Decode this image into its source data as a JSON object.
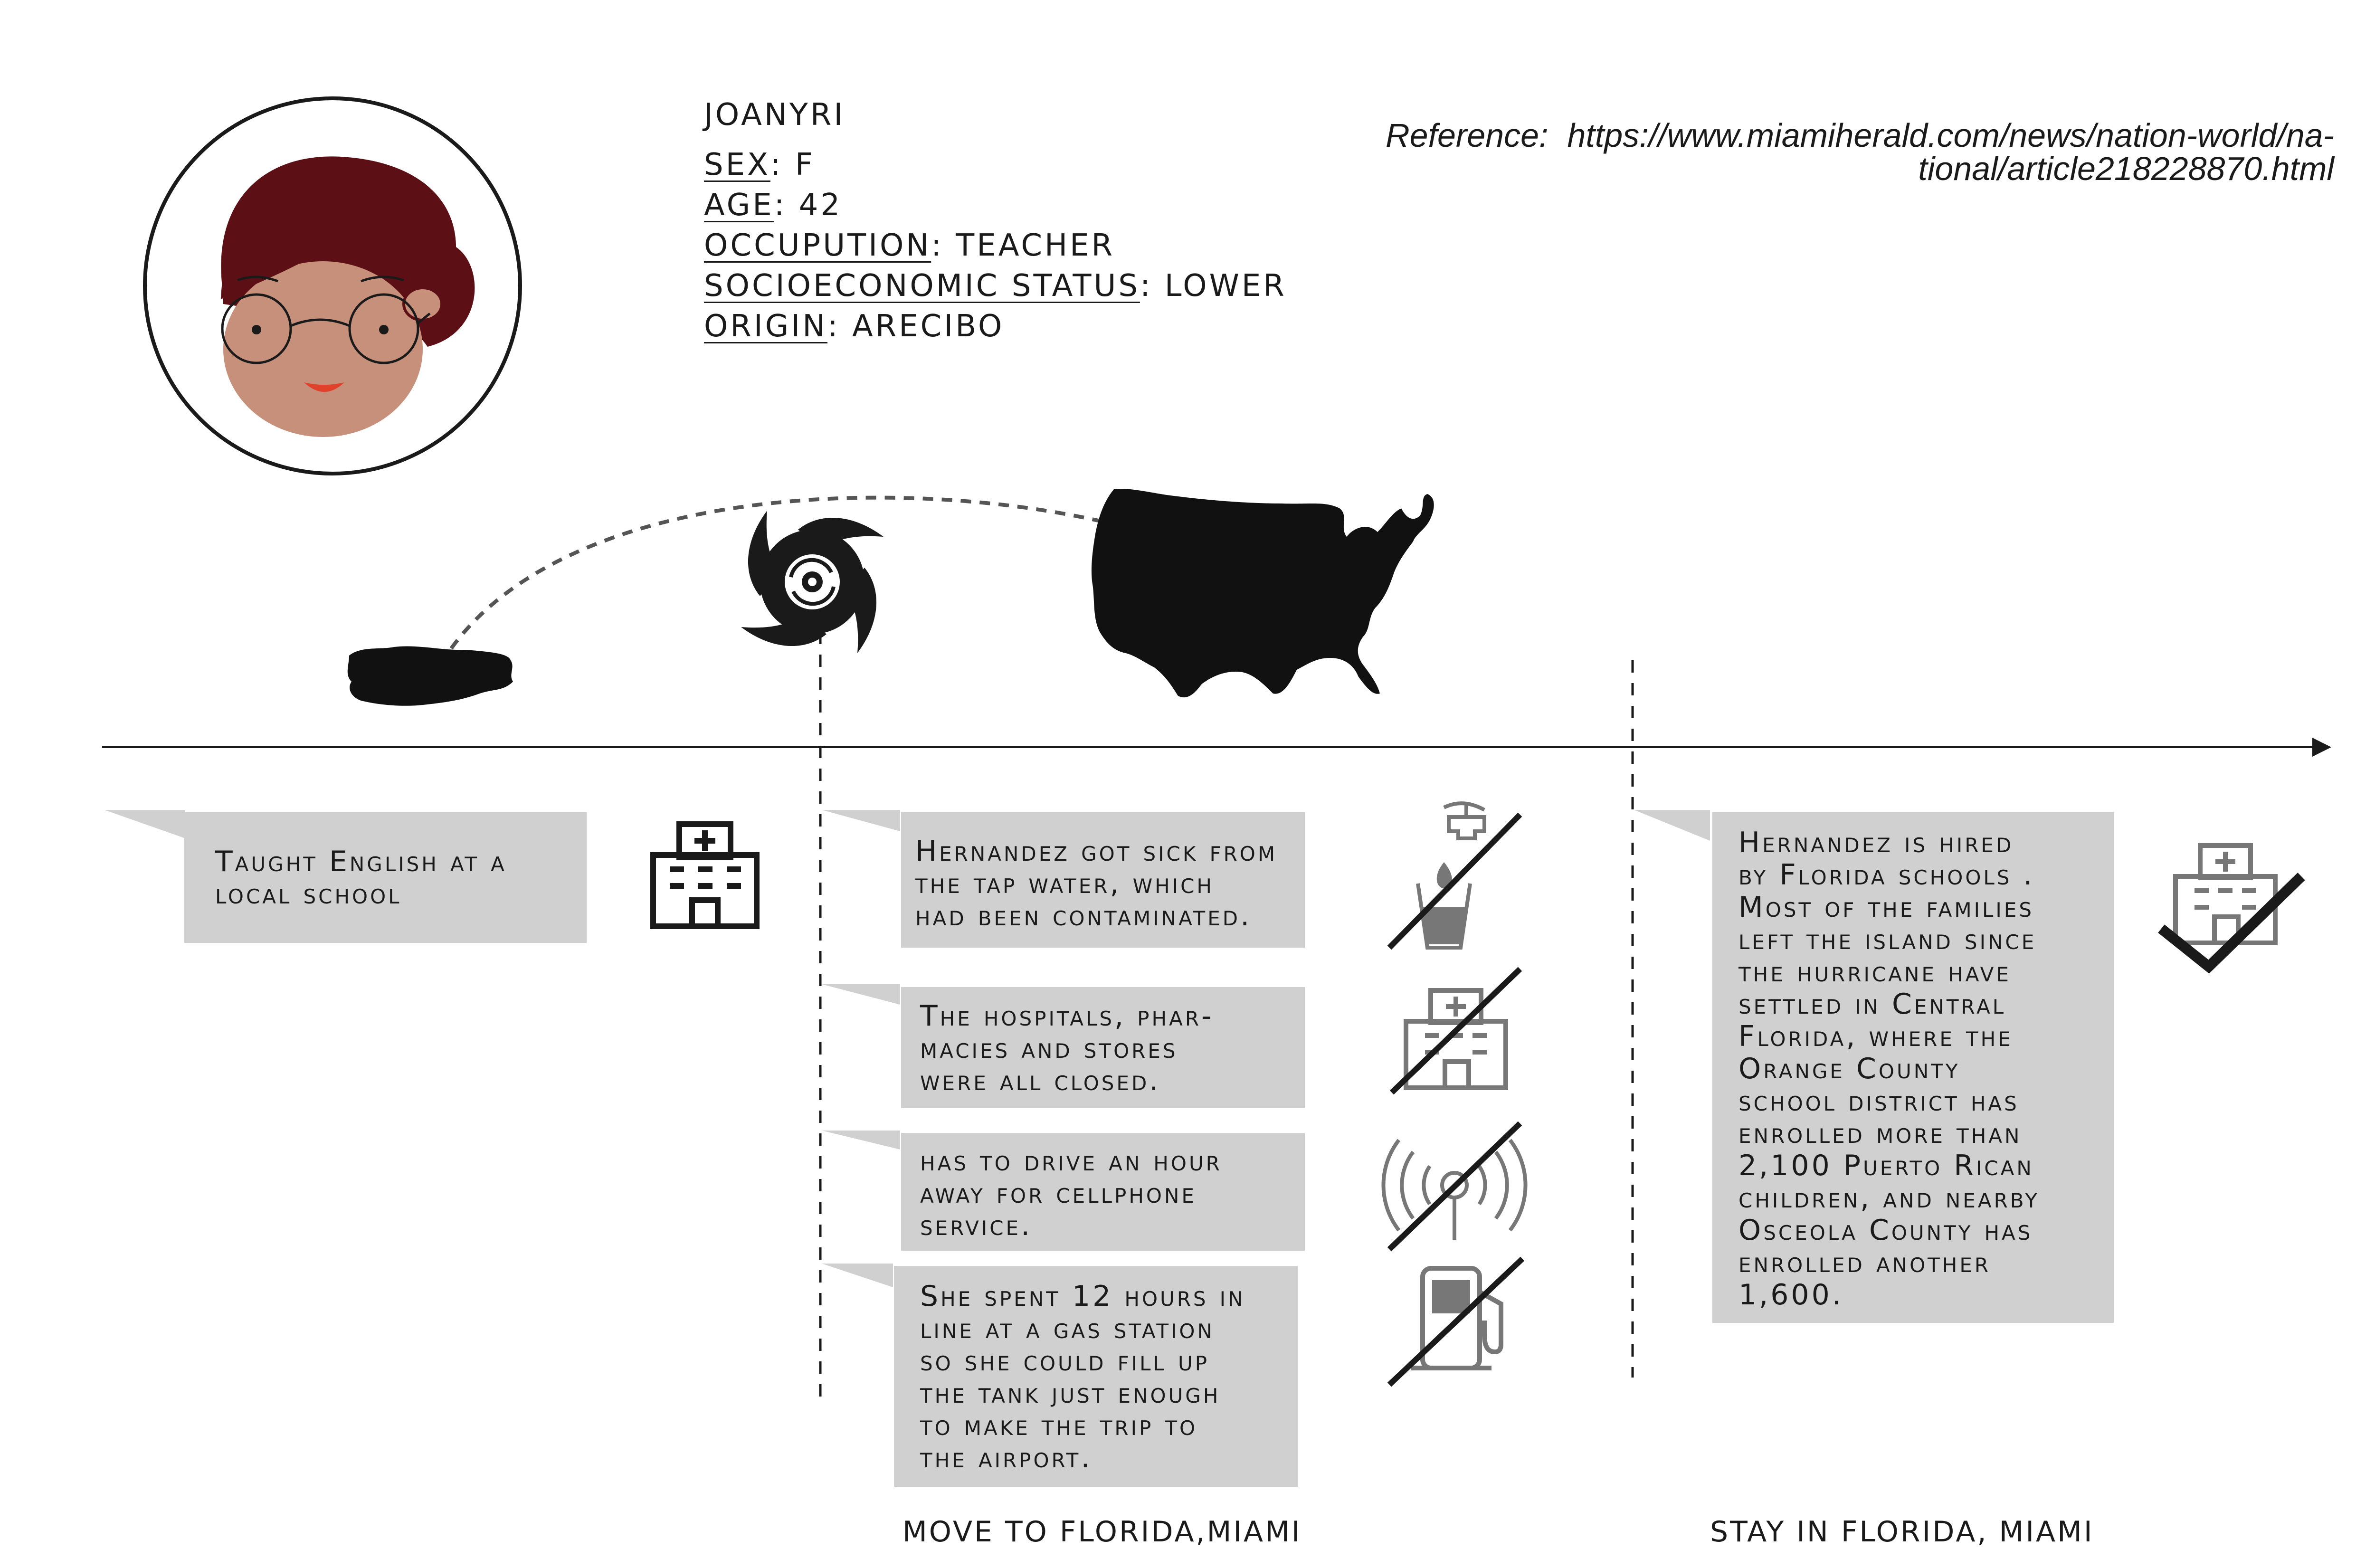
{
  "profile": {
    "name": "JOANYRI",
    "fields": [
      {
        "key": "SEX",
        "value": "F"
      },
      {
        "key": "AGE",
        "value": "42"
      },
      {
        "key": "OCCUPUTION",
        "value": "TEACHER"
      },
      {
        "key": "SOCIOECONOMIC STATUS",
        "value": "LOWER"
      },
      {
        "key": "ORIGIN",
        "value": "ARECIBO"
      }
    ]
  },
  "reference": {
    "label": "Reference:",
    "url_line1": "https://www.miamiherald.com/news/nation-world/na-",
    "url_line2": "tional/article218228870.html"
  },
  "stories": {
    "before": "Taught English at a\nlocal school",
    "sick": "Hernandez got sick from\nthe tap water, which\nhad been contaminated.",
    "hospitals": "The hospitals, phar-\nmacies and stores\nwere all closed.",
    "cellphone": "has to drive an hour\naway for cellphone\nservice.",
    "gas": "She spent 12 hours in\nline at a gas station\nso she could fill up\nthe tank just enough\nto make the trip to\nthe airport.",
    "florida": "Hernandez is hired\nby Florida schools .\nMost of the families\nleft the island since\nthe hurricane have\nsettled in Central\nFlorida, where the\nOrange County\nschool district has\nenrolled more than\n2,100 Puerto Rican\nchildren, and nearby\nOsceola County has\nenrolled another\n1,600."
  },
  "phases": {
    "move": "MOVE TO FLORIDA,MIAMI",
    "stay": "STAY IN FLORIDA, MIAMI"
  },
  "colors": {
    "box_fill": "#d0d0d0",
    "hair": "#5c0f14",
    "skin": "#c6907a",
    "mouth": "#e0412b",
    "icon_gray": "#777777",
    "ink": "#1a1a1a"
  },
  "icons": [
    "avatar-icon",
    "puerto-rico-map-icon",
    "hurricane-icon",
    "usa-map-icon",
    "school-building-icon",
    "no-tap-water-icon",
    "hospital-closed-icon",
    "no-signal-icon",
    "no-gas-icon",
    "school-approved-icon"
  ]
}
